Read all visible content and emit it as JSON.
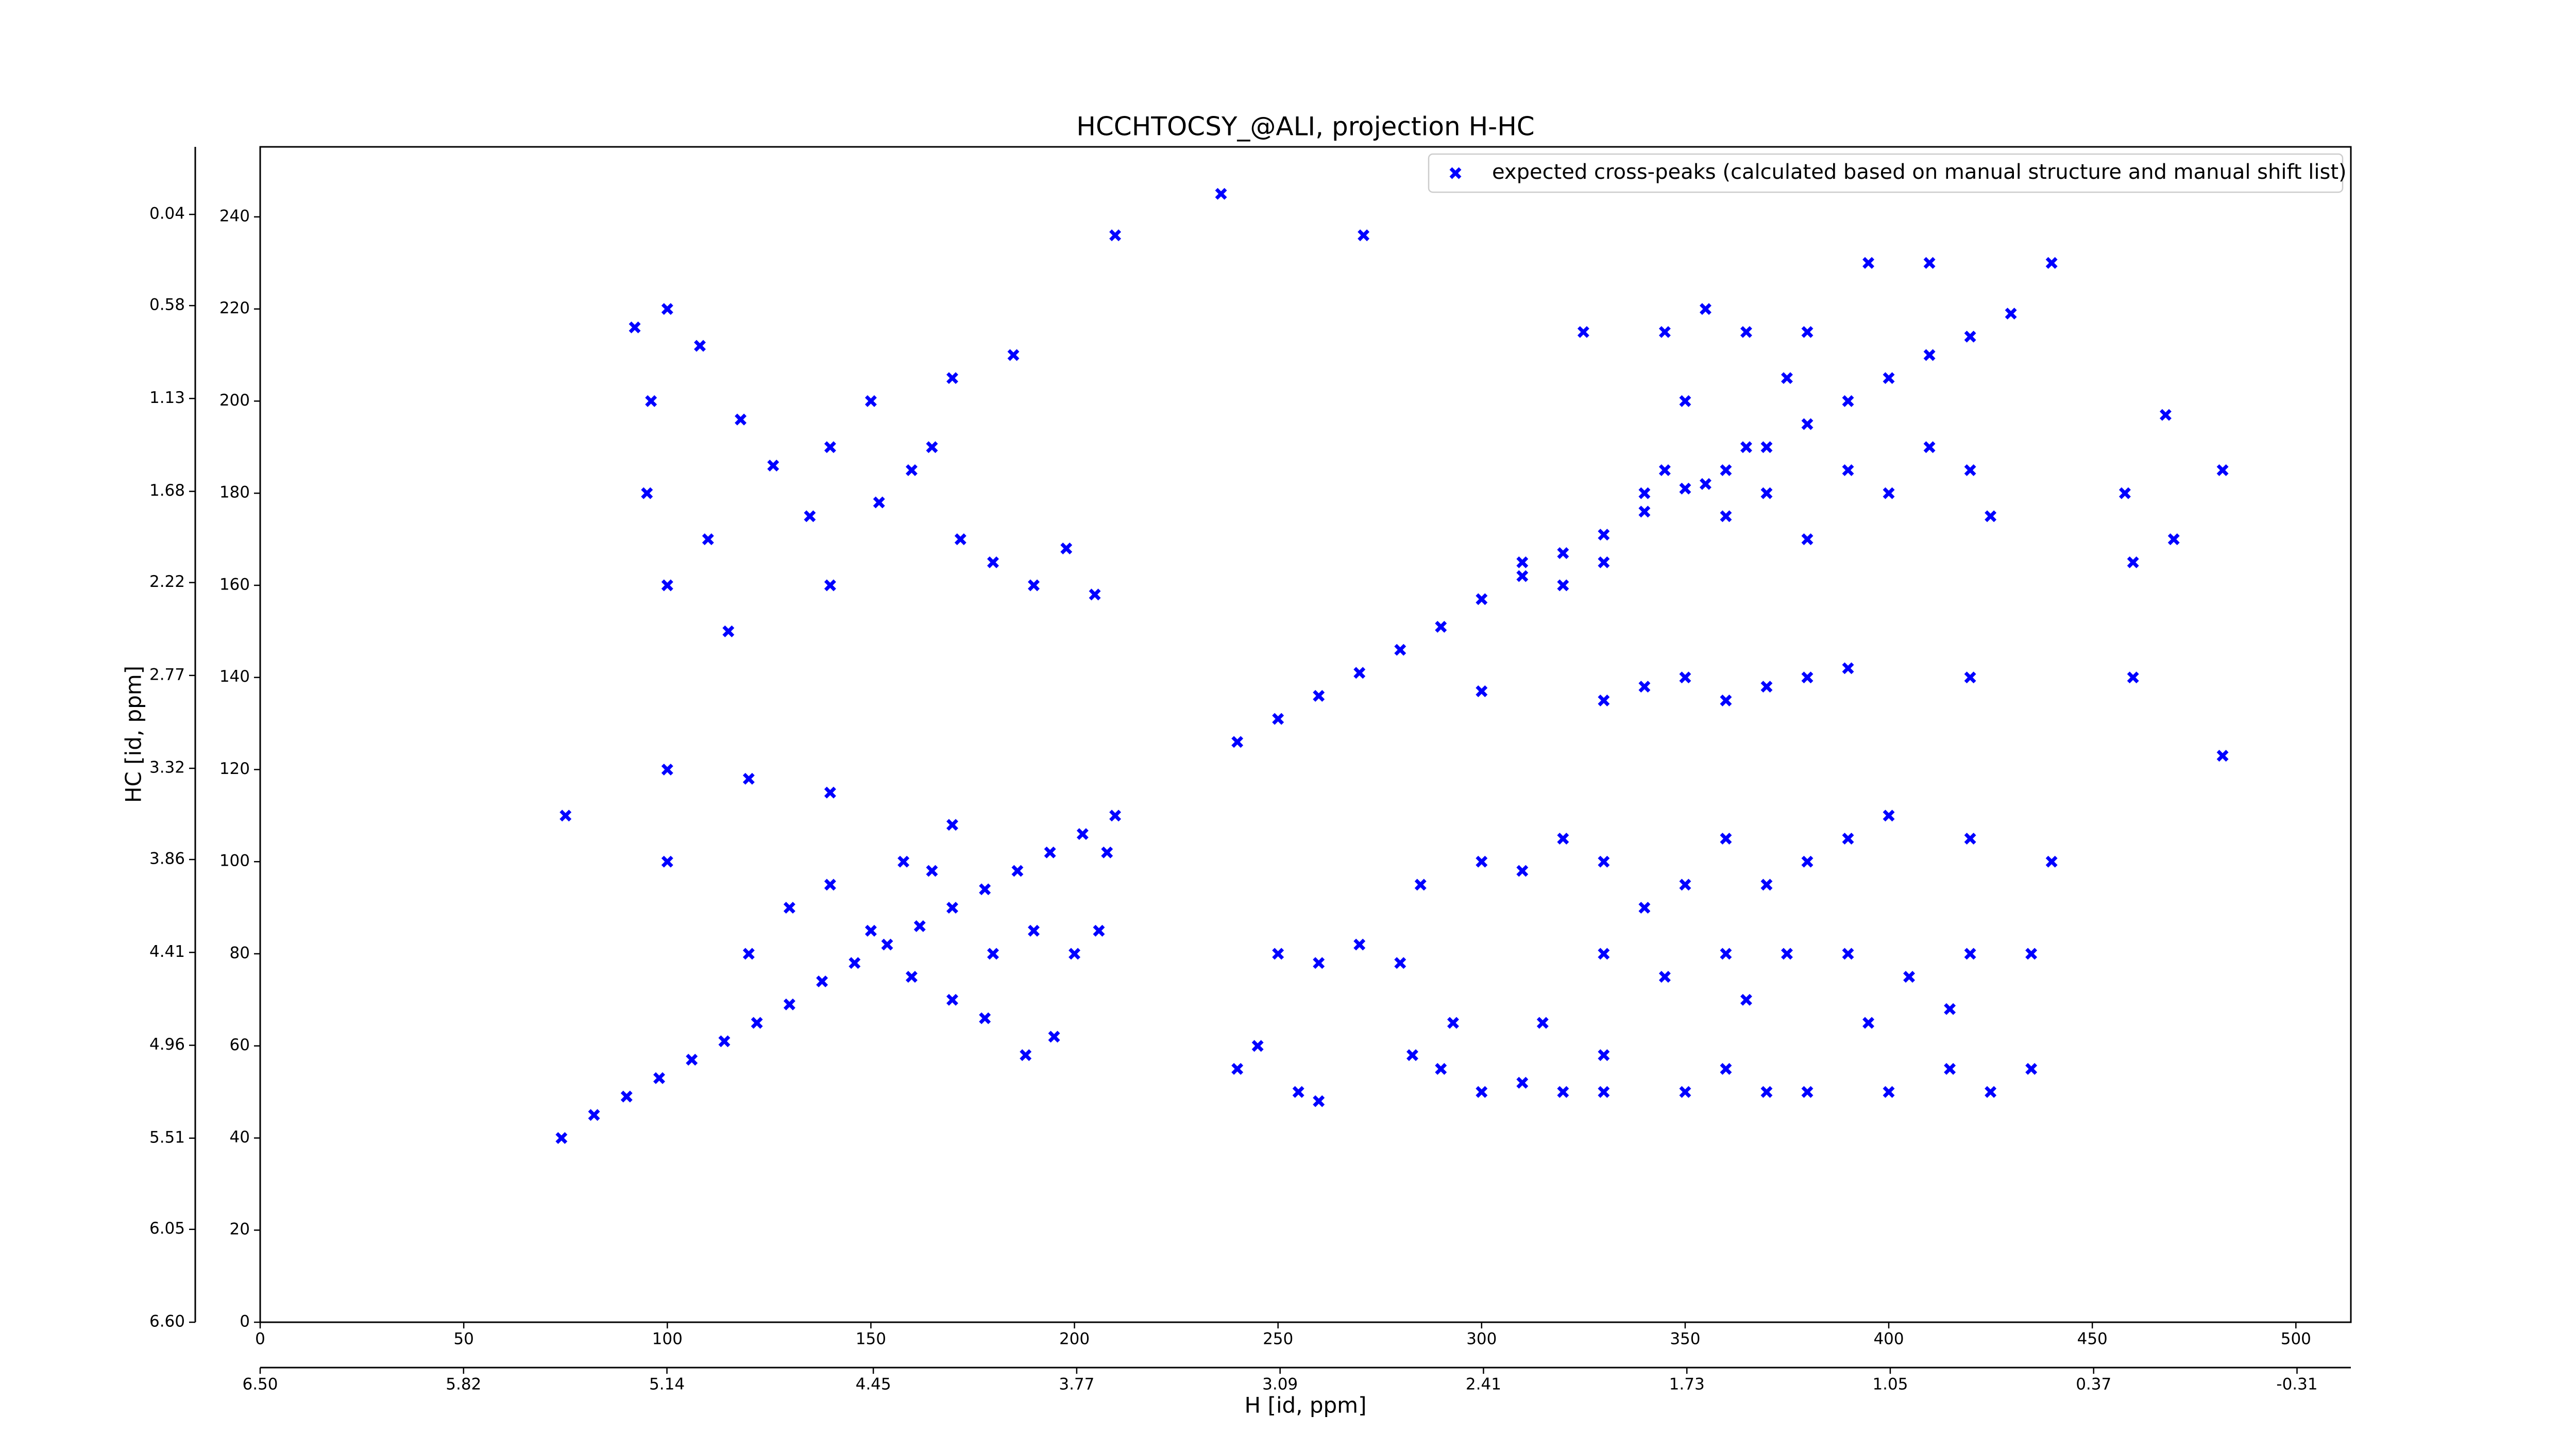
{
  "chart_data": {
    "type": "scatter",
    "title": "HCCHTOCSY_@ALI, projection H-HC",
    "xlabel": "H [id, ppm]",
    "ylabel": "HC [id, ppm]",
    "xlim": [
      0,
      513.5
    ],
    "xticks": [
      0,
      50,
      100,
      150,
      200,
      250,
      300,
      350,
      400,
      450,
      500
    ],
    "ylim": [
      0,
      255.2
    ],
    "yticks": [
      0,
      20,
      40,
      60,
      80,
      100,
      120,
      140,
      160,
      180,
      200,
      220,
      240
    ],
    "x2lim": [
      6.5,
      -0.49
    ],
    "x2ticks": [
      {
        "value": 6.5,
        "label": "6.50"
      },
      5.82,
      5.14,
      4.45,
      3.77,
      3.09,
      2.41,
      1.73,
      1.05,
      0.37,
      -0.31
    ],
    "y2lim": [
      6.6,
      -0.36
    ],
    "y2ticks": [
      {
        "value": 6.6,
        "label": "6.60"
      },
      6.05,
      5.51,
      4.96,
      4.41,
      3.86,
      3.32,
      2.77,
      2.22,
      1.68,
      1.13,
      0.58,
      0.04
    ],
    "legend_loc": "upper right",
    "series": [
      {
        "name": "expected cross-peaks (calculated based on manual structure and manual shift list)",
        "color": "#0000ff",
        "x": [
          74,
          82,
          90,
          98,
          106,
          114,
          122,
          130,
          138,
          146,
          154,
          162,
          170,
          178,
          186,
          194,
          202,
          210,
          240,
          250,
          260,
          270,
          280,
          290,
          300,
          310,
          320,
          330,
          340,
          350,
          360,
          370,
          380,
          390,
          400,
          410,
          420,
          430,
          92,
          100,
          108,
          96,
          118,
          126,
          140,
          152,
          160,
          172,
          180,
          190,
          198,
          205,
          170,
          185,
          150,
          135,
          110,
          95,
          100,
          115,
          140,
          165,
          210,
          236,
          271,
          340,
          345,
          355,
          360,
          365,
          370,
          350,
          375,
          380,
          390,
          400,
          410,
          420,
          425,
          330,
          320,
          310,
          345,
          355,
          365,
          380,
          325,
          395,
          410,
          440,
          460,
          458,
          470,
          482,
          468,
          330,
          340,
          350,
          360,
          370,
          380,
          390,
          420,
          460,
          482,
          300,
          285,
          300,
          310,
          320,
          330,
          340,
          350,
          360,
          370,
          380,
          390,
          400,
          420,
          440,
          330,
          345,
          360,
          375,
          390,
          405,
          420,
          435,
          290,
          300,
          310,
          320,
          330,
          350,
          360,
          370,
          380,
          400,
          415,
          425,
          435,
          250,
          260,
          270,
          280,
          255,
          260,
          240,
          245,
          283,
          293,
          315,
          330,
          365,
          395,
          415,
          120,
          130,
          140,
          150,
          160,
          170,
          180,
          190,
          200,
          195,
          188,
          178,
          206,
          158,
          170,
          140,
          120,
          100,
          100,
          75,
          165,
          208
        ],
        "y": [
          40,
          45,
          49,
          53,
          57,
          61,
          65,
          69,
          74,
          78,
          82,
          86,
          90,
          94,
          98,
          102,
          106,
          110,
          126,
          131,
          136,
          141,
          146,
          151,
          157,
          162,
          167,
          171,
          176,
          181,
          185,
          190,
          195,
          200,
          205,
          210,
          214,
          219,
          216,
          220,
          212,
          200,
          196,
          186,
          190,
          178,
          185,
          170,
          165,
          160,
          168,
          158,
          205,
          210,
          200,
          175,
          170,
          180,
          160,
          150,
          160,
          190,
          236,
          245,
          236,
          180,
          185,
          182,
          175,
          190,
          180,
          200,
          205,
          170,
          185,
          180,
          190,
          185,
          175,
          165,
          160,
          165,
          215,
          220,
          215,
          215,
          215,
          230,
          230,
          230,
          165,
          180,
          170,
          185,
          197,
          135,
          138,
          140,
          135,
          138,
          140,
          142,
          140,
          140,
          123,
          137,
          95,
          100,
          98,
          105,
          100,
          90,
          95,
          105,
          95,
          100,
          105,
          110,
          105,
          100,
          80,
          75,
          80,
          80,
          80,
          75,
          80,
          80,
          55,
          50,
          52,
          50,
          50,
          50,
          55,
          50,
          50,
          50,
          55,
          50,
          55,
          80,
          78,
          82,
          78,
          50,
          48,
          55,
          60,
          58,
          65,
          65,
          58,
          70,
          65,
          68,
          80,
          90,
          95,
          85,
          75,
          70,
          80,
          85,
          80,
          62,
          58,
          66,
          85,
          100,
          108,
          115,
          118,
          120,
          100,
          110,
          98,
          102
        ]
      }
    ]
  }
}
